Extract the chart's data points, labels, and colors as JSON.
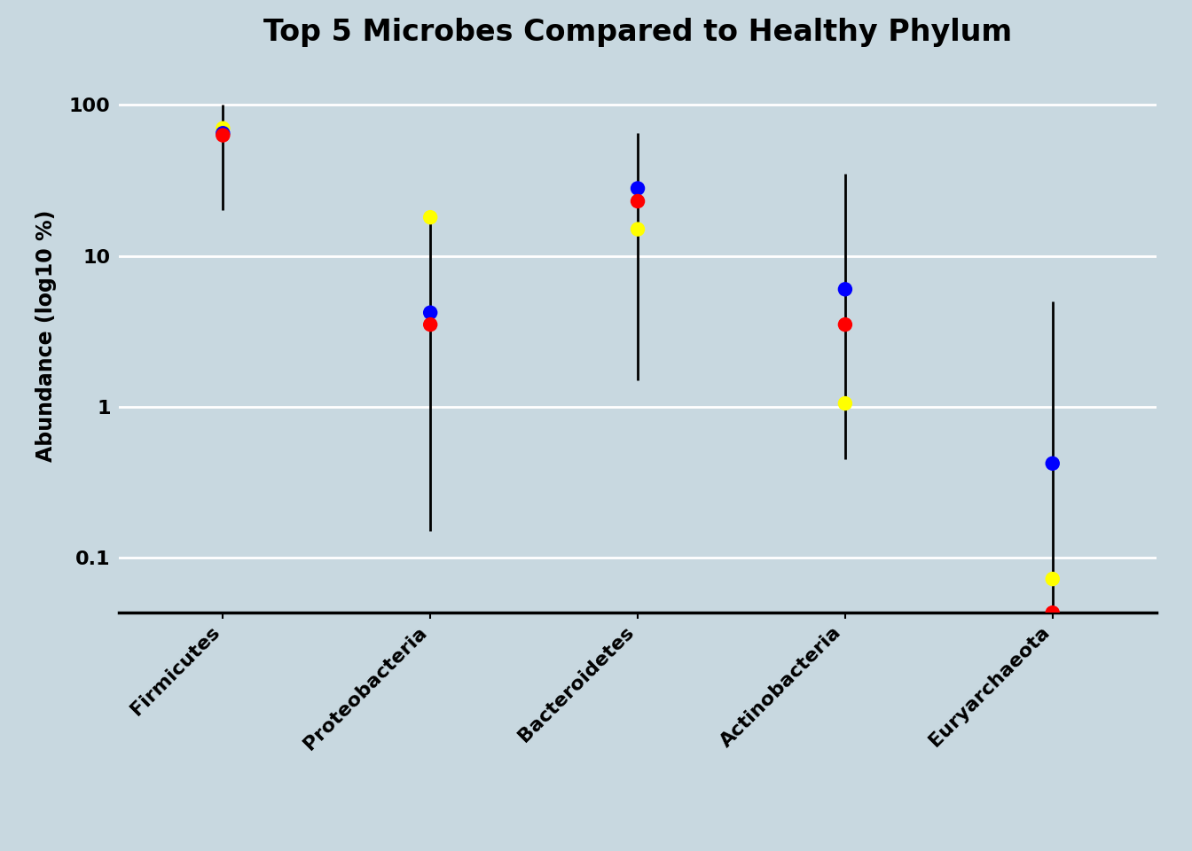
{
  "title": "Top 5 Microbes Compared to Healthy Phylum",
  "xlabel": "",
  "ylabel": "Abundance (log10 %)",
  "background_color": "#c8d8e0",
  "categories": [
    "Firmicutes",
    "Proteobacteria",
    "Bacteroidetes",
    "Actinobacteria",
    "Euryarchaeota"
  ],
  "blue_values": [
    65,
    4.2,
    28,
    6.0,
    0.42
  ],
  "red_values": [
    63,
    3.5,
    23,
    3.5,
    0.043
  ],
  "yellow_values": [
    70,
    18,
    15,
    1.05,
    0.072
  ],
  "error_low": [
    20,
    0.15,
    1.5,
    0.45,
    0.043
  ],
  "error_high": [
    100,
    18,
    65,
    35,
    5.0
  ],
  "ylim_low": 0.043,
  "ylim_high": 200,
  "title_fontsize": 24,
  "axis_fontsize": 17,
  "tick_fontsize": 16,
  "dot_size": 140,
  "line_width": 2.0,
  "yticks": [
    0.1,
    1,
    10,
    100
  ],
  "ytick_labels": [
    "0.1",
    "1",
    "10",
    "100"
  ]
}
